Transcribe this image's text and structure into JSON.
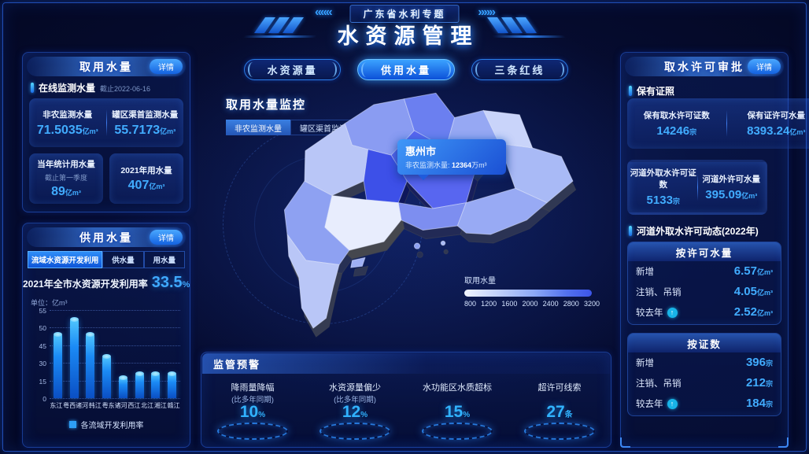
{
  "colors": {
    "accent": "#2e8ef7",
    "value_blue": "#3fa9ff",
    "alert_value": "#31b3ff",
    "map_highlight": "#3d50e8",
    "bar_fill": "#1b8af5",
    "background": "#03061d"
  },
  "header": {
    "subtitle": "广东省水利专题",
    "title": "水资源管理",
    "left_arrows": "«««",
    "right_arrows": "»»»"
  },
  "nav_tabs": [
    {
      "label": "水资源量",
      "active": false
    },
    {
      "label": "供用水量",
      "active": true
    },
    {
      "label": "三条红线",
      "active": false
    }
  ],
  "left_top_panel": {
    "title": "取用水量",
    "detail_label": "详情",
    "section_label": "在线监测水量",
    "section_note": "截止2022-06-16",
    "online_stats": [
      {
        "label": "非农监测水量",
        "value": "71.5035",
        "unit": "亿m³"
      },
      {
        "label": "罐区渠首监测水量",
        "value": "55.7173",
        "unit": "亿m³"
      }
    ],
    "year_stats": [
      {
        "label": "当年统计用水量",
        "note": "截止第一季度",
        "value": "89",
        "unit": "亿m³"
      },
      {
        "label": "2021年用水量",
        "note": "",
        "value": "407",
        "unit": "亿m³"
      }
    ]
  },
  "left_bottom_panel": {
    "title": "供用水量",
    "detail_label": "详情",
    "tabs": [
      {
        "label": "流域水资源开发利用",
        "active": true
      },
      {
        "label": "供水量",
        "active": false
      },
      {
        "label": "用水量",
        "active": false
      }
    ],
    "summary": {
      "label": "2021年全市水资源开发利用率",
      "value": "33.5",
      "unit": "%"
    },
    "unit_label": "单位：亿m³",
    "chart_data": {
      "type": "bar",
      "categories": [
        "东江",
        "粤西诸河",
        "韩江",
        "粤东诸河",
        "西江",
        "北江",
        "湘江",
        "赣江"
      ],
      "values": [
        40,
        49,
        40,
        26,
        13,
        15,
        15,
        15
      ],
      "ymax": 55,
      "y_ticks_display": [
        "55",
        "50",
        "45",
        "30",
        "15",
        "0"
      ],
      "legend": "各流域开发利用率",
      "ylabel_unit": "亿m³",
      "grid": "dotted"
    }
  },
  "map_section": {
    "title": "取用水量监控",
    "buttons": [
      {
        "label": "非农监测水量",
        "active": true
      },
      {
        "label": "罐区渠首监测水量",
        "active": false
      }
    ],
    "tooltip": {
      "city": "惠州市",
      "label_line": "非农监测水量:",
      "value": "12364",
      "unit": "万m³"
    },
    "legend": {
      "title": "取用水量",
      "ticks": [
        "800",
        "1200",
        "1600",
        "2000",
        "2400",
        "2800",
        "3200"
      ]
    }
  },
  "alert_panel": {
    "title": "监管预警",
    "items": [
      {
        "label": "降雨量降幅",
        "sublabel": "(比多年同期)",
        "value": "10",
        "unit": "%"
      },
      {
        "label": "水资源量偏少",
        "sublabel": "(比多年同期)",
        "value": "12",
        "unit": "%"
      },
      {
        "label": "水功能区水质超标",
        "sublabel": "",
        "value": "15",
        "unit": "%"
      },
      {
        "label": "超许可线索",
        "sublabel": "",
        "value": "27",
        "unit": "条"
      }
    ]
  },
  "right_panel": {
    "title": "取水许可审批",
    "detail_label": "详情",
    "section1_label": "保有证照",
    "license_card1": [
      {
        "label": "保有取水许可证数",
        "value": "14246",
        "unit": "宗"
      },
      {
        "label": "保有证许可水量",
        "value": "8393.24",
        "unit": "亿m³"
      }
    ],
    "license_card2": [
      {
        "label": "河道外取水许可证数",
        "value": "5133",
        "unit": "宗"
      },
      {
        "label": "河道外许可水量",
        "value": "395.09",
        "unit": "亿m³"
      }
    ],
    "section2_label": "河道外取水许可动态(2022年)",
    "groups": [
      {
        "title": "按许可水量",
        "rows": [
          {
            "label": "新增",
            "value": "6.57",
            "unit": "亿m³",
            "arrow": false
          },
          {
            "label": "注销、吊销",
            "value": "4.05",
            "unit": "亿m³",
            "arrow": false
          },
          {
            "label": "较去年",
            "value": "2.52",
            "unit": "亿m³",
            "arrow": true
          }
        ]
      },
      {
        "title": "按证数",
        "rows": [
          {
            "label": "新增",
            "value": "396",
            "unit": "宗",
            "arrow": false
          },
          {
            "label": "注销、吊销",
            "value": "212",
            "unit": "宗",
            "arrow": false
          },
          {
            "label": "较去年",
            "value": "184",
            "unit": "宗",
            "arrow": true
          }
        ]
      }
    ]
  }
}
